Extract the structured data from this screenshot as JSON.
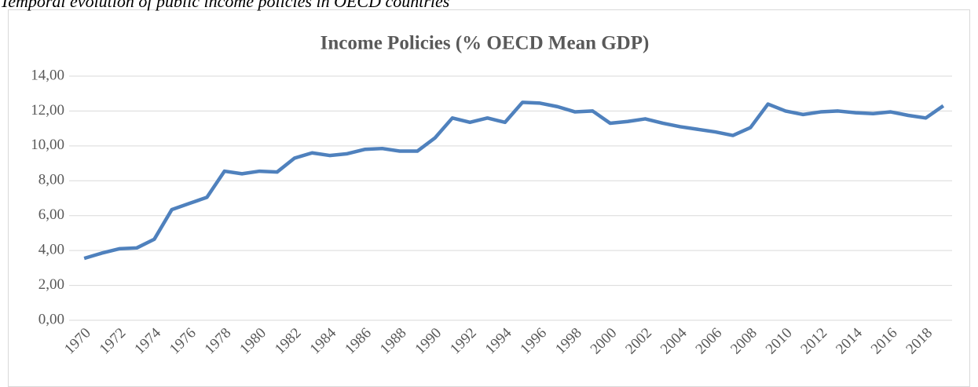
{
  "caption": "Temporal evolution of public income policies in OECD countries",
  "chart_data": {
    "type": "line",
    "title": "Income Policies (% OECD Mean GDP)",
    "categories": [
      "1970",
      null,
      "1972",
      null,
      "1974",
      null,
      "1976",
      null,
      "1978",
      null,
      "1980",
      null,
      "1982",
      null,
      "1984",
      null,
      "1986",
      null,
      "1988",
      null,
      "1990",
      null,
      "1992",
      null,
      "1994",
      null,
      "1996",
      null,
      "1998",
      null,
      "2000",
      null,
      "2002",
      null,
      "2004",
      null,
      "2006",
      null,
      "2008",
      null,
      "2010",
      null,
      "2012",
      null,
      "2014",
      null,
      "2016",
      null,
      "2018",
      null
    ],
    "series": [
      {
        "name": "Income Policies",
        "color": "#4f81bd",
        "values": [
          3.55,
          3.85,
          4.1,
          4.15,
          4.65,
          6.35,
          6.7,
          7.05,
          8.55,
          8.4,
          8.55,
          8.5,
          9.3,
          9.6,
          9.45,
          9.55,
          9.8,
          9.85,
          9.7,
          9.7,
          10.45,
          11.6,
          11.35,
          11.6,
          11.35,
          12.5,
          12.45,
          12.25,
          11.95,
          12.0,
          11.3,
          11.4,
          11.55,
          11.3,
          11.1,
          10.95,
          10.8,
          10.6,
          11.05,
          12.4,
          12.0,
          11.8,
          11.95,
          12.0,
          11.9,
          11.85,
          11.95,
          11.75,
          11.6,
          12.3
        ]
      }
    ],
    "ylim": [
      0,
      14
    ],
    "yticks": [
      {
        "value": 0,
        "label": "0,00"
      },
      {
        "value": 2,
        "label": "2,00"
      },
      {
        "value": 4,
        "label": "4,00"
      },
      {
        "value": 6,
        "label": "6,00"
      },
      {
        "value": 8,
        "label": "8,00"
      },
      {
        "value": 10,
        "label": "10,00"
      },
      {
        "value": 12,
        "label": "12,00"
      },
      {
        "value": 14,
        "label": "14,00"
      }
    ],
    "grid": true
  }
}
